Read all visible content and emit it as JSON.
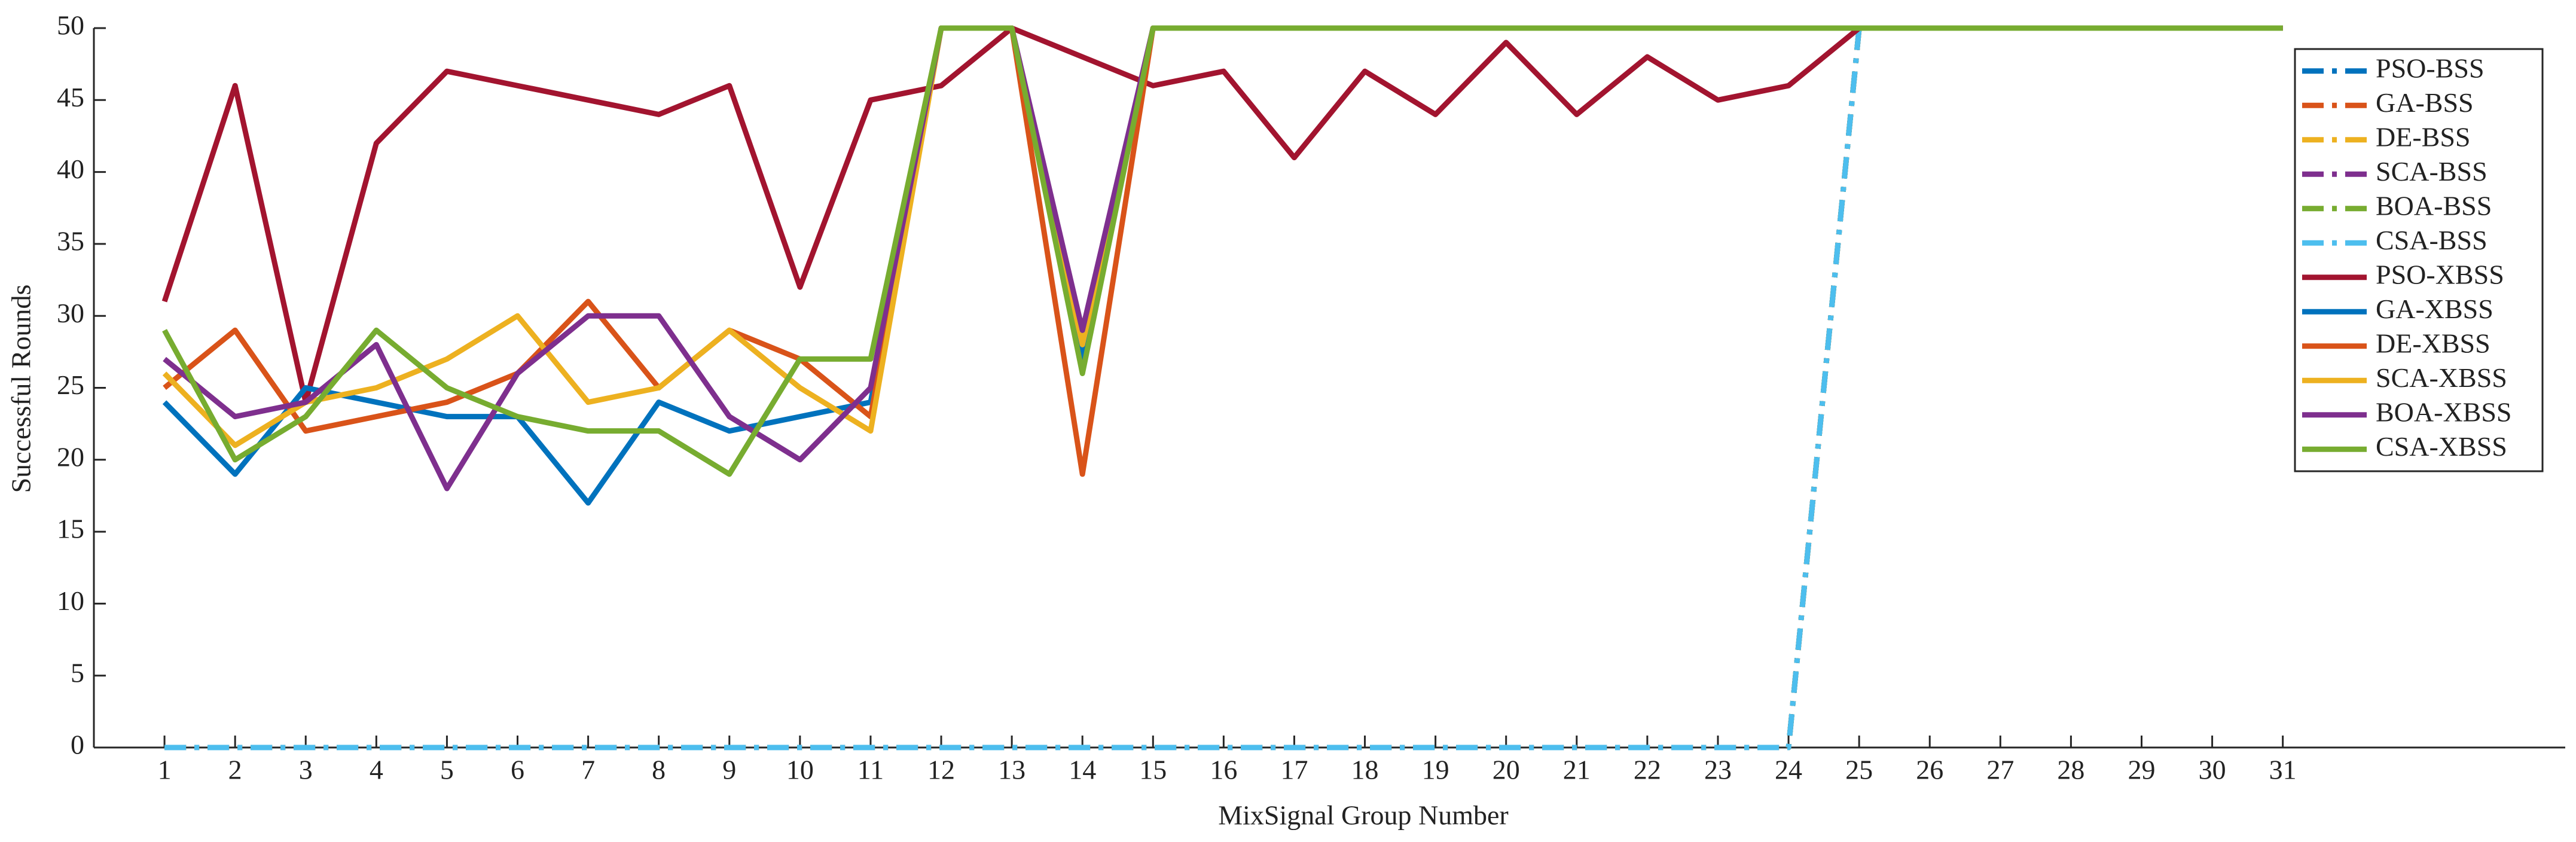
{
  "chart_data": {
    "type": "line",
    "x_label": "MixSignal Group Number",
    "y_label": "Successful Rounds",
    "x": [
      1,
      2,
      3,
      4,
      5,
      6,
      7,
      8,
      9,
      10,
      11,
      12,
      13,
      14,
      15,
      16,
      17,
      18,
      19,
      20,
      21,
      22,
      23,
      24,
      25,
      26,
      27,
      28,
      29,
      30,
      31
    ],
    "xlim": [
      0,
      35
    ],
    "xticks": [
      1,
      2,
      3,
      4,
      5,
      6,
      7,
      8,
      9,
      10,
      11,
      12,
      13,
      14,
      15,
      16,
      17,
      18,
      19,
      20,
      21,
      22,
      23,
      24,
      25,
      26,
      27,
      28,
      29,
      30,
      31
    ],
    "ylim": [
      0,
      50
    ],
    "yticks": [
      0,
      5,
      10,
      15,
      20,
      25,
      30,
      35,
      40,
      45,
      50
    ],
    "legend": "northeast",
    "series": [
      {
        "name": "PSO-BSS",
        "color": "#0072BD",
        "linestyle": "dashdot",
        "values": [
          0,
          0,
          0,
          0,
          0,
          0,
          0,
          0,
          0,
          0,
          0,
          0,
          0,
          0,
          0,
          0,
          0,
          0,
          0,
          0,
          0,
          0,
          0,
          0,
          50,
          50,
          50,
          50,
          50,
          50,
          50
        ]
      },
      {
        "name": "GA-BSS",
        "color": "#D95319",
        "linestyle": "dashdot",
        "values": [
          0,
          0,
          0,
          0,
          0,
          0,
          0,
          0,
          0,
          0,
          0,
          0,
          0,
          0,
          0,
          0,
          0,
          0,
          0,
          0,
          0,
          0,
          0,
          0,
          50,
          50,
          50,
          50,
          50,
          50,
          50
        ]
      },
      {
        "name": "DE-BSS",
        "color": "#EDB120",
        "linestyle": "dashdot",
        "values": [
          0,
          0,
          0,
          0,
          0,
          0,
          0,
          0,
          0,
          0,
          0,
          0,
          0,
          0,
          0,
          0,
          0,
          0,
          0,
          0,
          0,
          0,
          0,
          0,
          50,
          50,
          50,
          50,
          50,
          50,
          50
        ]
      },
      {
        "name": "SCA-BSS",
        "color": "#7E2F8E",
        "linestyle": "dashdot",
        "values": [
          0,
          0,
          0,
          0,
          0,
          0,
          0,
          0,
          0,
          0,
          0,
          0,
          0,
          0,
          0,
          0,
          0,
          0,
          0,
          0,
          0,
          0,
          0,
          0,
          50,
          50,
          50,
          50,
          50,
          50,
          50
        ]
      },
      {
        "name": "BOA-BSS",
        "color": "#77AC30",
        "linestyle": "dashdot",
        "values": [
          0,
          0,
          0,
          0,
          0,
          0,
          0,
          0,
          0,
          0,
          0,
          0,
          0,
          0,
          0,
          0,
          0,
          0,
          0,
          0,
          0,
          0,
          0,
          0,
          50,
          50,
          50,
          50,
          50,
          50,
          50
        ]
      },
      {
        "name": "CSA-BSS",
        "color": "#4DBEEE",
        "linestyle": "dashdot",
        "values": [
          0,
          0,
          0,
          0,
          0,
          0,
          0,
          0,
          0,
          0,
          0,
          0,
          0,
          0,
          0,
          0,
          0,
          0,
          0,
          0,
          0,
          0,
          0,
          0,
          50,
          50,
          50,
          50,
          50,
          50,
          50
        ]
      },
      {
        "name": "PSO-XBSS",
        "color": "#A2142F",
        "linestyle": "solid",
        "values": [
          31,
          46,
          24,
          42,
          47,
          46,
          45,
          44,
          46,
          32,
          45,
          46,
          50,
          48,
          46,
          47,
          41,
          47,
          44,
          49,
          44,
          48,
          45,
          46,
          50,
          50,
          50,
          50,
          50,
          50,
          50
        ]
      },
      {
        "name": "GA-XBSS",
        "color": "#0072BD",
        "linestyle": "solid",
        "values": [
          24,
          19,
          25,
          24,
          23,
          23,
          17,
          24,
          22,
          23,
          24,
          50,
          50,
          27,
          50,
          50,
          50,
          50,
          50,
          50,
          50,
          50,
          50,
          50,
          50,
          50,
          50,
          50,
          50,
          50,
          50
        ]
      },
      {
        "name": "DE-XBSS",
        "color": "#D95319",
        "linestyle": "solid",
        "values": [
          25,
          29,
          22,
          23,
          24,
          26,
          31,
          25,
          29,
          27,
          23,
          50,
          50,
          19,
          50,
          50,
          50,
          50,
          50,
          50,
          50,
          50,
          50,
          50,
          50,
          50,
          50,
          50,
          50,
          50,
          50
        ]
      },
      {
        "name": "SCA-XBSS",
        "color": "#EDB120",
        "linestyle": "solid",
        "values": [
          26,
          21,
          24,
          25,
          27,
          30,
          24,
          25,
          29,
          25,
          22,
          50,
          50,
          28,
          50,
          50,
          50,
          50,
          50,
          50,
          50,
          50,
          50,
          50,
          50,
          50,
          50,
          50,
          50,
          50,
          50
        ]
      },
      {
        "name": "BOA-XBSS",
        "color": "#7E2F8E",
        "linestyle": "solid",
        "values": [
          27,
          23,
          24,
          28,
          18,
          26,
          30,
          30,
          23,
          20,
          25,
          50,
          50,
          29,
          50,
          50,
          50,
          50,
          50,
          50,
          50,
          50,
          50,
          50,
          50,
          50,
          50,
          50,
          50,
          50,
          50
        ]
      },
      {
        "name": "CSA-XBSS",
        "color": "#77AC30",
        "linestyle": "solid",
        "values": [
          29,
          20,
          23,
          29,
          25,
          23,
          22,
          22,
          19,
          27,
          27,
          50,
          50,
          26,
          50,
          50,
          50,
          50,
          50,
          50,
          50,
          50,
          50,
          50,
          50,
          50,
          50,
          50,
          50,
          50,
          50
        ]
      }
    ]
  }
}
